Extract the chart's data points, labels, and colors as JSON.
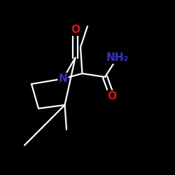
{
  "background_color": "#000000",
  "bond_color": "#ffffff",
  "atom_colors": {
    "O": "#ff0000",
    "N_ring": "#3333cc",
    "NH2": "#3333cc"
  },
  "figsize": [
    2.5,
    2.5
  ],
  "dpi": 100
}
